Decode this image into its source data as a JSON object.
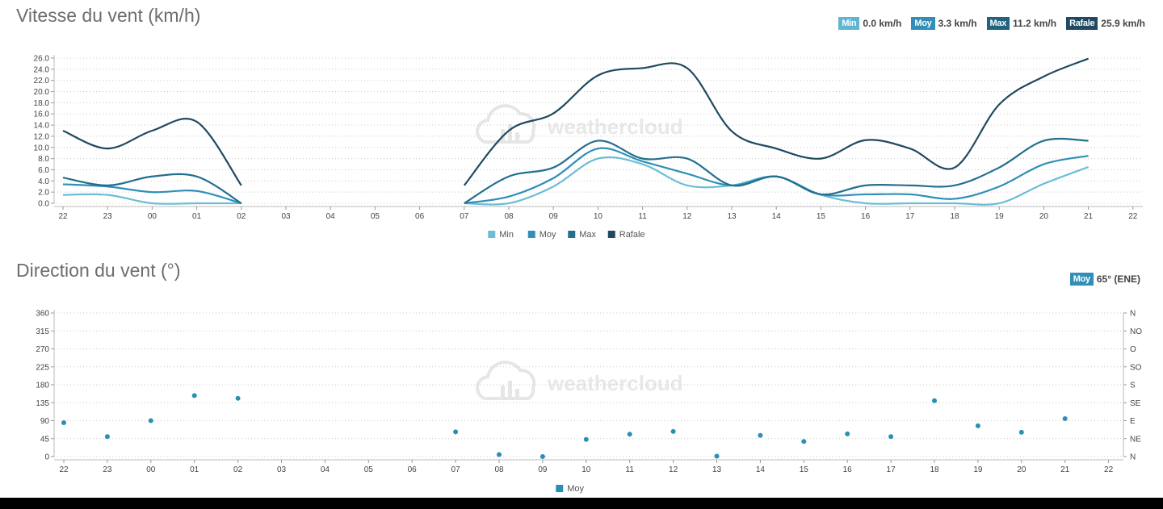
{
  "speed_panel": {
    "title": "Vitesse du vent (km/h)",
    "badges": [
      {
        "label": "Min",
        "value": "0.0 km/h",
        "color": "#5fb6d2"
      },
      {
        "label": "Moy",
        "value": "3.3 km/h",
        "color": "#2f8fb8"
      },
      {
        "label": "Max",
        "value": "11.2 km/h",
        "color": "#20647f"
      },
      {
        "label": "Rafale",
        "value": "25.9 km/h",
        "color": "#1f4a61"
      }
    ]
  },
  "direction_panel": {
    "title": "Direction du vent (°)",
    "badges": [
      {
        "label": "Moy",
        "value": "65° (ENE)",
        "color": "#2f8fb8"
      }
    ]
  },
  "watermark": "weathercloud",
  "chart_data": [
    {
      "type": "line",
      "x": [
        "22",
        "23",
        "00",
        "01",
        "02",
        "03",
        "04",
        "05",
        "06",
        "07",
        "08",
        "09",
        "10",
        "11",
        "12",
        "13",
        "14",
        "15",
        "16",
        "17",
        "18",
        "19",
        "20",
        "21",
        "22"
      ],
      "y_ticks": [
        "0.0",
        "2.0",
        "4.0",
        "6.0",
        "8.0",
        "10.0",
        "12.0",
        "14.0",
        "16.0",
        "18.0",
        "20.0",
        "22.0",
        "24.0",
        "26.0"
      ],
      "ylim": [
        0,
        26
      ],
      "grid": true,
      "legend": "bottom",
      "series": [
        {
          "name": "Min",
          "color": "#6cbdd6",
          "values": [
            1.5,
            1.5,
            0.0,
            0.0,
            0.0,
            null,
            null,
            null,
            null,
            0.0,
            0.0,
            3.0,
            8.0,
            7.0,
            3.2,
            3.2,
            4.8,
            1.5,
            0.0,
            0.0,
            0.0,
            0.0,
            3.5,
            6.5,
            null
          ]
        },
        {
          "name": "Moy",
          "color": "#2f8fb8",
          "values": [
            3.4,
            3.0,
            2.0,
            2.2,
            0.0,
            null,
            null,
            null,
            null,
            0.0,
            1.2,
            4.5,
            9.8,
            7.5,
            5.3,
            3.2,
            4.8,
            1.6,
            1.6,
            1.6,
            0.8,
            3.0,
            7.0,
            8.5,
            null
          ]
        },
        {
          "name": "Max",
          "color": "#246f8e",
          "values": [
            4.6,
            3.2,
            4.8,
            4.8,
            0.0,
            null,
            null,
            null,
            null,
            0.0,
            4.8,
            6.4,
            11.2,
            8.0,
            8.0,
            3.2,
            4.8,
            1.6,
            3.2,
            3.2,
            3.2,
            6.4,
            11.2,
            11.2,
            null
          ]
        },
        {
          "name": "Rafale",
          "color": "#1f4a61",
          "values": [
            13.0,
            9.8,
            13.0,
            14.6,
            3.2,
            null,
            null,
            null,
            null,
            3.2,
            13.0,
            16.1,
            22.9,
            24.2,
            24.2,
            12.9,
            9.8,
            8.0,
            11.3,
            9.8,
            6.4,
            17.7,
            22.7,
            25.9,
            null
          ]
        }
      ]
    },
    {
      "type": "scatter",
      "x": [
        "22",
        "23",
        "00",
        "01",
        "02",
        "03",
        "04",
        "05",
        "06",
        "07",
        "08",
        "09",
        "10",
        "11",
        "12",
        "13",
        "14",
        "15",
        "16",
        "17",
        "18",
        "19",
        "20",
        "21",
        "22"
      ],
      "y_ticks": [
        "0",
        "45",
        "90",
        "135",
        "180",
        "225",
        "270",
        "315",
        "360"
      ],
      "y_ticks_right": [
        "N",
        "NE",
        "E",
        "SE",
        "S",
        "SO",
        "O",
        "NO",
        "N"
      ],
      "ylim": [
        0,
        360
      ],
      "grid": true,
      "legend": "bottom",
      "series": [
        {
          "name": "Moy",
          "color": "#2a8fb5",
          "values": [
            85,
            50,
            90,
            153,
            146,
            null,
            null,
            null,
            null,
            62,
            5,
            0,
            43,
            56,
            63,
            1,
            53,
            38,
            57,
            50,
            140,
            77,
            61,
            95,
            null
          ]
        }
      ]
    }
  ]
}
